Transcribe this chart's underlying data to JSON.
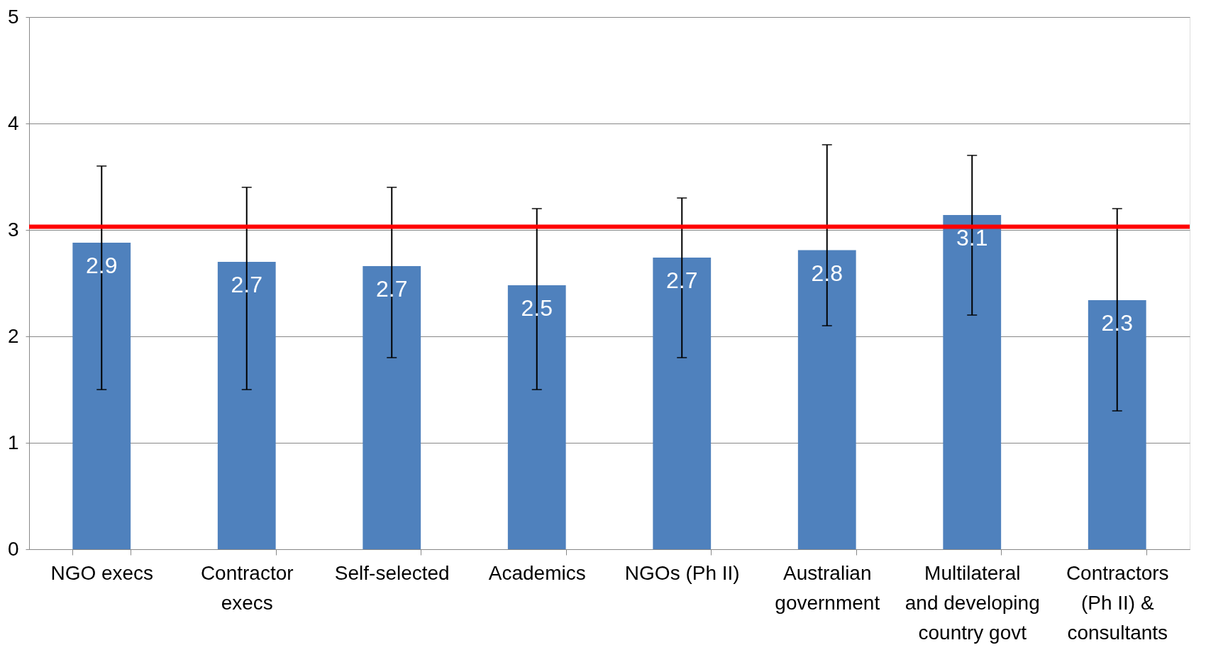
{
  "chart_data": {
    "type": "bar",
    "categories": [
      "NGO execs",
      "Contractor execs",
      "Self-selected",
      "Academics",
      "NGOs (Ph II)",
      "Australian government",
      "Multilateral and developing country govt",
      "Contractors (Ph II) & consultants"
    ],
    "values": [
      2.88,
      2.7,
      2.66,
      2.48,
      2.74,
      2.81,
      3.14,
      2.34
    ],
    "value_labels": [
      "2.9",
      "2.7",
      "2.7",
      "2.5",
      "2.7",
      "2.8",
      "3.1",
      "2.3"
    ],
    "errors": [
      [
        1.5,
        3.6
      ],
      [
        1.5,
        3.4
      ],
      [
        1.8,
        3.4
      ],
      [
        1.5,
        3.2
      ],
      [
        1.8,
        3.3
      ],
      [
        2.1,
        3.8
      ],
      [
        2.2,
        3.7
      ],
      [
        1.3,
        3.2
      ]
    ],
    "color": "#4f81bd",
    "ylim": [
      0,
      5
    ],
    "yticks": [
      0,
      1,
      2,
      3,
      4,
      5
    ],
    "grid": "y",
    "ref_lines": [
      {
        "axis": "y",
        "value": 3.03,
        "color": "#ff0000",
        "line_style": "solid"
      }
    ]
  }
}
